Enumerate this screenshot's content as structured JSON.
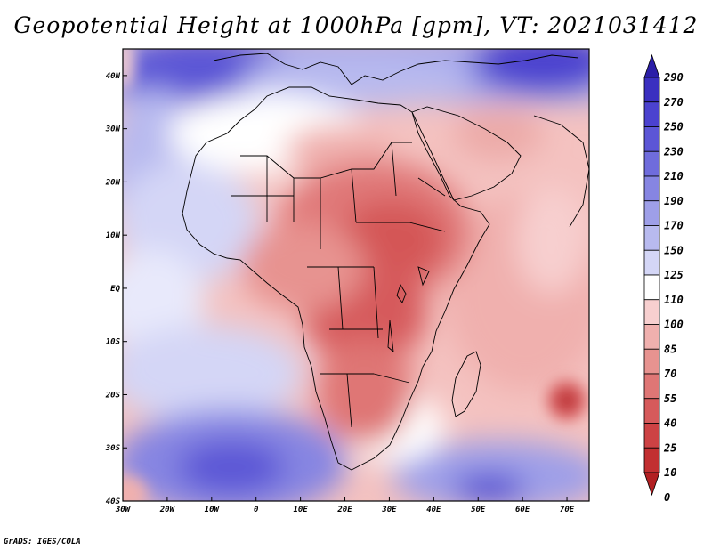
{
  "title": "Geopotential Height at 1000hPa [gpm], VT: 2021031412",
  "credit": "GrADS: IGES/COLA",
  "map": {
    "lon_range": [
      -30,
      75
    ],
    "lat_range": [
      -40,
      45
    ],
    "lat_ticks": [
      {
        "value": 40,
        "label": "40N"
      },
      {
        "value": 30,
        "label": "30N"
      },
      {
        "value": 20,
        "label": "20N"
      },
      {
        "value": 10,
        "label": "10N"
      },
      {
        "value": 0,
        "label": "EQ"
      },
      {
        "value": -10,
        "label": "10S"
      },
      {
        "value": -20,
        "label": "20S"
      },
      {
        "value": -30,
        "label": "30S"
      },
      {
        "value": -40,
        "label": "40S"
      }
    ],
    "lon_ticks": [
      {
        "value": -30,
        "label": "30W"
      },
      {
        "value": -20,
        "label": "20W"
      },
      {
        "value": -10,
        "label": "10W"
      },
      {
        "value": 0,
        "label": "0"
      },
      {
        "value": 10,
        "label": "10E"
      },
      {
        "value": 20,
        "label": "20E"
      },
      {
        "value": 30,
        "label": "30E"
      },
      {
        "value": 40,
        "label": "40E"
      },
      {
        "value": 50,
        "label": "50E"
      },
      {
        "value": 60,
        "label": "60E"
      },
      {
        "value": 70,
        "label": "70E"
      }
    ]
  },
  "colorbar": {
    "levels": [
      "290",
      "270",
      "250",
      "230",
      "210",
      "190",
      "170",
      "150",
      "125",
      "110",
      "100",
      "85",
      "70",
      "55",
      "40",
      "25",
      "10",
      "0"
    ],
    "colors": [
      "#2b1ea8",
      "#3a2fc0",
      "#4b42cf",
      "#5c56d6",
      "#6f6cdc",
      "#8685e2",
      "#9e9fe8",
      "#b8baef",
      "#d4d6f6",
      "#ffffff",
      "#f7cfcf",
      "#f0b0ae",
      "#e79390",
      "#df7675",
      "#d65a5b",
      "#cd4244",
      "#c22f31",
      "#b21f22"
    ]
  }
}
